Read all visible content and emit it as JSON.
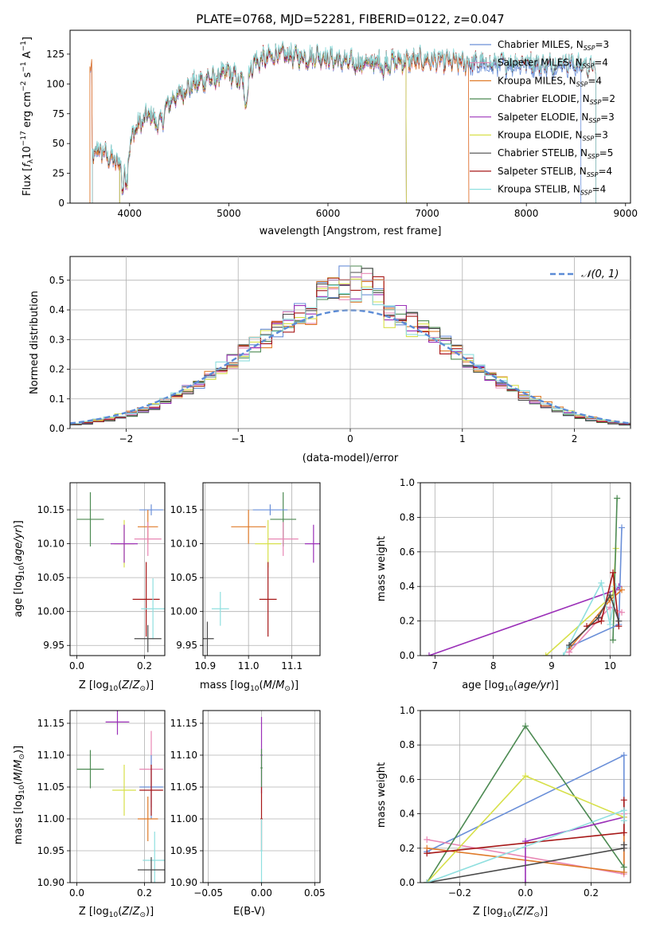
{
  "colors": {
    "chabrier_miles": "#6a8fd8",
    "salpeter_miles": "#e887b5",
    "kroupa_miles": "#e07b2a",
    "chabrier_elodie": "#4c8a52",
    "salpeter_elodie": "#9b30b8",
    "kroupa_elodie": "#d7e04a",
    "chabrier_stelib": "#4a4a4a",
    "salpeter_stelib": "#a71818",
    "kroupa_stelib": "#8fdfdf",
    "normal": "#5b8bd6",
    "grid": "#b0b0b0"
  },
  "chart_data": [
    {
      "id": "spectrum",
      "type": "line",
      "title": "PLATE=0768, MJD=52281, FIBERID=0122, z=0.047",
      "xlabel": "wavelength [Angstrom, rest frame]",
      "ylabel": "Flux [fλ10⁻¹⁷ erg cm⁻² s⁻¹ A⁻¹]",
      "xlim": [
        3400,
        9050
      ],
      "ylim": [
        0,
        145
      ],
      "xticks": [
        "4000",
        "5000",
        "6000",
        "7000",
        "8000",
        "9000"
      ],
      "yticks": [
        "0",
        "25",
        "50",
        "75",
        "100",
        "125"
      ],
      "grid": false,
      "legend_position": "top-right",
      "series": [
        {
          "name": "Chabrier MILES, N_SSP=3",
          "key": "chabrier_miles",
          "range": [
            3600,
            8550
          ]
        },
        {
          "name": "Salpeter MILES, N_SSP=4",
          "key": "salpeter_miles",
          "range": [
            3600,
            7420
          ]
        },
        {
          "name": "Kroupa MILES, N_SSP=4",
          "key": "kroupa_miles",
          "range": [
            3600,
            7420
          ]
        },
        {
          "name": "Chabrier ELODIE, N_SSP=2",
          "key": "chabrier_elodie",
          "range": [
            3900,
            6790
          ]
        },
        {
          "name": "Salpeter ELODIE, N_SSP=3",
          "key": "salpeter_elodie",
          "range": [
            3900,
            6790
          ]
        },
        {
          "name": "Kroupa ELODIE, N_SSP=3",
          "key": "kroupa_elodie",
          "range": [
            3900,
            6790
          ]
        },
        {
          "name": "Chabrier STELIB, N_SSP=5",
          "key": "chabrier_stelib",
          "range": [
            3620,
            8700
          ]
        },
        {
          "name": "Salpeter STELIB, N_SSP=4",
          "key": "salpeter_stelib",
          "range": [
            3620,
            8700
          ]
        },
        {
          "name": "Kroupa STELIB, N_SSP=4",
          "key": "kroupa_stelib",
          "range": [
            3620,
            8700
          ]
        }
      ],
      "continuum": [
        [
          3620,
          40
        ],
        [
          3700,
          45
        ],
        [
          3800,
          38
        ],
        [
          3950,
          30
        ],
        [
          4050,
          62
        ],
        [
          4200,
          75
        ],
        [
          4300,
          65
        ],
        [
          4400,
          85
        ],
        [
          4600,
          98
        ],
        [
          4800,
          105
        ],
        [
          5000,
          110
        ],
        [
          5150,
          100
        ],
        [
          5250,
          118
        ],
        [
          5500,
          125
        ],
        [
          5800,
          122
        ],
        [
          5900,
          124
        ],
        [
          6100,
          120
        ],
        [
          6300,
          117
        ],
        [
          6500,
          118
        ],
        [
          6700,
          119
        ],
        [
          7000,
          120
        ],
        [
          7300,
          118
        ],
        [
          7600,
          116
        ],
        [
          8000,
          118
        ],
        [
          8200,
          115
        ],
        [
          8400,
          118
        ],
        [
          8700,
          112
        ]
      ]
    },
    {
      "id": "residuals",
      "type": "area",
      "xlabel": "(data-model)/error",
      "ylabel": "Normed distribution",
      "xlim": [
        -2.5,
        2.5
      ],
      "ylim": [
        0,
        0.58
      ],
      "xticks": [
        "−2",
        "−1",
        "0",
        "1",
        "2"
      ],
      "yticks": [
        "0.0",
        "0.1",
        "0.2",
        "0.3",
        "0.4",
        "0.5"
      ],
      "grid": true,
      "bin_width": 0.1,
      "normal_label": "𝒩(0, 1)",
      "legend_position": "top-right"
    },
    {
      "id": "age_vs_z",
      "type": "scatter",
      "xlabel": "Z [log₁₀(Z/Z⊙)]",
      "ylabel": "age  [log₁₀(age/yr)]",
      "xlim": [
        -0.02,
        0.26
      ],
      "ylim": [
        9.935,
        10.19
      ],
      "xticks": [
        "0.0",
        "0.2"
      ],
      "yticks": [
        "9.95",
        "10.00",
        "10.05",
        "10.10",
        "10.15"
      ],
      "grid": true,
      "points": [
        {
          "key": "chabrier_elodie",
          "x": 0.04,
          "y": 10.136,
          "xerr": 0.04,
          "yerr": 0.04
        },
        {
          "key": "chabrier_miles",
          "x": 0.22,
          "y": 10.15,
          "xerr": 0.035,
          "yerr": 0.008
        },
        {
          "key": "kroupa_miles",
          "x": 0.21,
          "y": 10.125,
          "xerr": 0.03,
          "yerr": 0.025
        },
        {
          "key": "salpeter_miles",
          "x": 0.21,
          "y": 10.107,
          "xerr": 0.04,
          "yerr": 0.025
        },
        {
          "key": "kroupa_elodie",
          "x": 0.14,
          "y": 10.1,
          "xerr": 0.03,
          "yerr": 0.035
        },
        {
          "key": "salpeter_elodie",
          "x": 0.14,
          "y": 10.1,
          "xerr": 0.04,
          "yerr": 0.028
        },
        {
          "key": "salpeter_stelib",
          "x": 0.205,
          "y": 10.018,
          "xerr": 0.04,
          "yerr": 0.055
        },
        {
          "key": "kroupa_stelib",
          "x": 0.225,
          "y": 10.004,
          "xerr": 0.035,
          "yerr": 0.045
        },
        {
          "key": "chabrier_stelib",
          "x": 0.21,
          "y": 9.96,
          "xerr": 0.04,
          "yerr": 0.02
        }
      ]
    },
    {
      "id": "age_vs_mass",
      "type": "scatter",
      "xlabel": "mass [log₁₀(M/M⊙)]",
      "ylabel": "",
      "xlim": [
        10.895,
        11.165
      ],
      "ylim": [
        9.935,
        10.19
      ],
      "xticks": [
        "10.9",
        "11.0",
        "11.1"
      ],
      "yticks": [
        "9.95",
        "10.00",
        "10.05",
        "10.10",
        "10.15"
      ],
      "grid": true,
      "points": [
        {
          "key": "chabrier_elodie",
          "x": 11.08,
          "y": 10.136,
          "xerr": 0.03,
          "yerr": 0.04
        },
        {
          "key": "chabrier_miles",
          "x": 11.05,
          "y": 10.15,
          "xerr": 0.04,
          "yerr": 0.008
        },
        {
          "key": "kroupa_miles",
          "x": 11.0,
          "y": 10.125,
          "xerr": 0.04,
          "yerr": 0.025
        },
        {
          "key": "salpeter_miles",
          "x": 11.08,
          "y": 10.107,
          "xerr": 0.035,
          "yerr": 0.025
        },
        {
          "key": "kroupa_elodie",
          "x": 11.045,
          "y": 10.1,
          "xerr": 0.03,
          "yerr": 0.035
        },
        {
          "key": "salpeter_elodie",
          "x": 11.15,
          "y": 10.1,
          "xerr": 0.02,
          "yerr": 0.028
        },
        {
          "key": "salpeter_stelib",
          "x": 11.045,
          "y": 10.018,
          "xerr": 0.02,
          "yerr": 0.055
        },
        {
          "key": "kroupa_stelib",
          "x": 10.935,
          "y": 10.004,
          "xerr": 0.02,
          "yerr": 0.025
        },
        {
          "key": "chabrier_stelib",
          "x": 10.905,
          "y": 9.96,
          "xerr": 0.015,
          "yerr": 0.025
        }
      ]
    },
    {
      "id": "weight_vs_age",
      "type": "line",
      "xlabel": "age  [log₁₀(age/yr)]",
      "ylabel": "mass weight",
      "xlim": [
        6.75,
        10.35
      ],
      "ylim": [
        0,
        1
      ],
      "xticks": [
        "7",
        "8",
        "9",
        "10"
      ],
      "yticks": [
        "0.0",
        "0.2",
        "0.4",
        "0.6",
        "0.8",
        "1.0"
      ],
      "grid": true,
      "series": [
        {
          "key": "salpeter_elodie",
          "x": [
            6.9,
            10.1,
            10.15
          ],
          "y": [
            0.0,
            0.38,
            0.4
          ]
        },
        {
          "key": "kroupa_elodie",
          "x": [
            8.9,
            10.05,
            10.1
          ],
          "y": [
            0.0,
            0.35,
            0.62
          ]
        },
        {
          "key": "chabrier_elodie",
          "x": [
            10.05,
            10.12
          ],
          "y": [
            0.09,
            0.91
          ]
        },
        {
          "key": "chabrier_miles",
          "x": [
            9.3,
            10.15,
            10.2
          ],
          "y": [
            0.05,
            0.18,
            0.74
          ]
        },
        {
          "key": "kroupa_miles",
          "x": [
            9.3,
            10.0,
            10.2
          ],
          "y": [
            0.04,
            0.32,
            0.38
          ]
        },
        {
          "key": "salpeter_miles",
          "x": [
            9.3,
            10.0,
            10.2
          ],
          "y": [
            0.02,
            0.28,
            0.25
          ]
        },
        {
          "key": "kroupa_stelib",
          "x": [
            9.2,
            9.85,
            10.0,
            10.1
          ],
          "y": [
            0.0,
            0.42,
            0.18,
            0.4
          ]
        },
        {
          "key": "salpeter_stelib",
          "x": [
            9.6,
            9.85,
            10.05,
            10.15
          ],
          "y": [
            0.17,
            0.2,
            0.48,
            0.17
          ]
        },
        {
          "key": "chabrier_stelib",
          "x": [
            9.3,
            9.8,
            10.0,
            10.15
          ],
          "y": [
            0.06,
            0.22,
            0.35,
            0.2
          ]
        }
      ]
    },
    {
      "id": "mass_vs_z",
      "type": "scatter",
      "xlabel": "Z [log₁₀(Z/Z⊙)]",
      "ylabel": "mass [log₁₀(M/M⊙)]",
      "xlim": [
        -0.02,
        0.26
      ],
      "ylim": [
        10.9,
        11.17
      ],
      "xticks": [
        "0.0",
        "0.2"
      ],
      "yticks": [
        "10.90",
        "10.95",
        "11.00",
        "11.05",
        "11.10",
        "11.15"
      ],
      "grid": true,
      "points": [
        {
          "key": "salpeter_elodie",
          "x": 0.12,
          "y": 11.152,
          "xerr": 0.035,
          "yerr": 0.02
        },
        {
          "key": "chabrier_elodie",
          "x": 0.04,
          "y": 11.078,
          "xerr": 0.04,
          "yerr": 0.03
        },
        {
          "key": "salpeter_miles",
          "x": 0.22,
          "y": 11.078,
          "xerr": 0.035,
          "yerr": 0.06
        },
        {
          "key": "chabrier_miles",
          "x": 0.22,
          "y": 11.05,
          "xerr": 0.035,
          "yerr": 0.05
        },
        {
          "key": "salpeter_stelib",
          "x": 0.22,
          "y": 11.045,
          "xerr": 0.035,
          "yerr": 0.04
        },
        {
          "key": "kroupa_elodie",
          "x": 0.14,
          "y": 11.045,
          "xerr": 0.035,
          "yerr": 0.04
        },
        {
          "key": "kroupa_miles",
          "x": 0.21,
          "y": 11.0,
          "xerr": 0.03,
          "yerr": 0.035
        },
        {
          "key": "kroupa_stelib",
          "x": 0.23,
          "y": 10.935,
          "xerr": 0.035,
          "yerr": 0.045
        },
        {
          "key": "chabrier_stelib",
          "x": 0.22,
          "y": 10.92,
          "xerr": 0.04,
          "yerr": 0.02
        }
      ]
    },
    {
      "id": "mass_vs_ebv",
      "type": "scatter",
      "xlabel": "E(B-V)",
      "ylabel": "",
      "xlim": [
        -0.055,
        0.055
      ],
      "ylim": [
        10.9,
        11.17
      ],
      "xticks": [
        "−0.05",
        "0.00",
        "0.05"
      ],
      "yticks": [
        "10.90",
        "10.95",
        "11.00",
        "11.05",
        "11.10",
        "11.15"
      ],
      "grid": true,
      "points": [
        {
          "key": "salpeter_elodie",
          "x": 0.0,
          "y": 11.1,
          "xerr": 0.001,
          "yerr": 0.06
        },
        {
          "key": "chabrier_elodie",
          "x": 0.0,
          "y": 11.08,
          "xerr": 0.001,
          "yerr": 0.03
        },
        {
          "key": "salpeter_stelib",
          "x": 0.0,
          "y": 11.0,
          "xerr": 0.001,
          "yerr": 0.05
        },
        {
          "key": "kroupa_stelib",
          "x": 0.0,
          "y": 10.95,
          "xerr": 0.001,
          "yerr": 0.05
        }
      ]
    },
    {
      "id": "weight_vs_z",
      "type": "line",
      "xlabel": "Z [log₁₀(Z/Z⊙)]",
      "ylabel": "mass weight",
      "xlim": [
        -0.32,
        0.32
      ],
      "ylim": [
        0,
        1
      ],
      "xticks": [
        "−0.2",
        "0.0",
        "0.2"
      ],
      "yticks": [
        "0.0",
        "0.2",
        "0.4",
        "0.6",
        "0.8",
        "1.0"
      ],
      "grid": true,
      "series": [
        {
          "key": "chabrier_miles",
          "x": [
            -0.3,
            0.3,
            0.3
          ],
          "y": [
            0.18,
            0.74,
            0.06
          ]
        },
        {
          "key": "salpeter_miles",
          "x": [
            -0.3,
            0.3,
            0.3
          ],
          "y": [
            0.25,
            0.05,
            0.4
          ]
        },
        {
          "key": "kroupa_miles",
          "x": [
            -0.3,
            0.3,
            0.3
          ],
          "y": [
            0.2,
            0.06,
            0.38
          ]
        },
        {
          "key": "chabrier_elodie",
          "x": [
            -0.3,
            0.0,
            0.3
          ],
          "y": [
            0.0,
            0.91,
            0.09
          ]
        },
        {
          "key": "salpeter_elodie",
          "x": [
            0.0,
            0.0,
            0.3
          ],
          "y": [
            0.0,
            0.24,
            0.38
          ]
        },
        {
          "key": "kroupa_elodie",
          "x": [
            -0.3,
            0.0,
            0.3
          ],
          "y": [
            0.0,
            0.62,
            0.38
          ]
        },
        {
          "key": "chabrier_stelib",
          "x": [
            -0.3,
            0.3,
            0.3
          ],
          "y": [
            0.0,
            0.2,
            0.22
          ]
        },
        {
          "key": "salpeter_stelib",
          "x": [
            -0.3,
            0.3,
            0.3
          ],
          "y": [
            0.17,
            0.29,
            0.48
          ]
        },
        {
          "key": "kroupa_stelib",
          "x": [
            -0.3,
            0.3,
            0.3
          ],
          "y": [
            0.0,
            0.42,
            0.36
          ]
        }
      ]
    }
  ]
}
